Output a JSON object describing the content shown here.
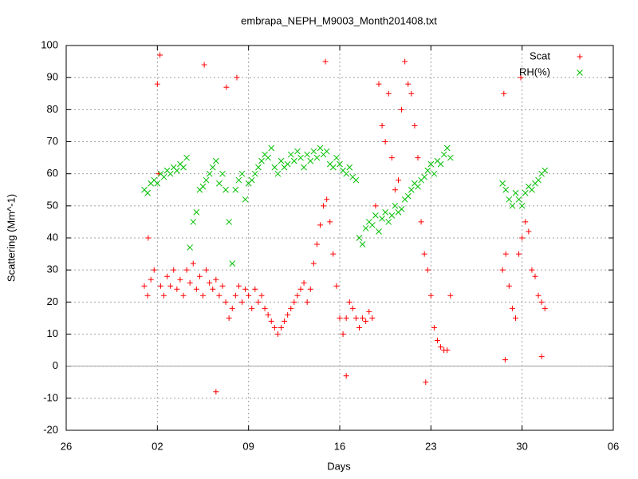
{
  "chart_data": {
    "type": "scatter",
    "title": "embrapa_NEPH_M9003_Month201408.txt",
    "xlabel": "Days",
    "ylabel": "Scattering (Mm^-1)",
    "xlim": [
      -5,
      37
    ],
    "xticks": [
      {
        "value": -5,
        "label": "26"
      },
      {
        "value": 2,
        "label": "02"
      },
      {
        "value": 9,
        "label": "09"
      },
      16,
      23,
      30,
      {
        "value": 37,
        "label": "06"
      }
    ],
    "ylim": [
      -20,
      100
    ],
    "yticks": [
      -20,
      -10,
      0,
      10,
      20,
      30,
      40,
      50,
      60,
      70,
      80,
      90,
      100
    ],
    "grid": true,
    "legend": "top-right",
    "series": [
      {
        "name": "Scat",
        "color": "#ff0000",
        "marker": "+",
        "x": [
          1.0,
          1.25,
          1.5,
          1.75,
          2.0,
          2.1,
          2.25,
          2.5,
          2.75,
          3.0,
          3.25,
          3.5,
          3.75,
          4.0,
          4.25,
          4.5,
          4.75,
          5.0,
          5.25,
          5.5,
          5.75,
          6.0,
          6.25,
          6.5,
          6.75,
          7.0,
          7.25,
          7.5,
          7.75,
          8.0,
          8.25,
          8.5,
          8.75,
          9.0,
          9.25,
          9.5,
          9.75,
          10.0,
          10.25,
          10.5,
          10.75,
          11.0,
          11.25,
          11.5,
          11.75,
          12.0,
          12.25,
          12.5,
          12.75,
          13.0,
          13.25,
          13.5,
          13.75,
          14.0,
          14.25,
          14.5,
          14.75,
          15.0,
          15.25,
          15.5,
          15.75,
          16.0,
          16.25,
          16.5,
          16.75,
          17.0,
          17.25,
          17.5,
          17.75,
          18.0,
          18.25,
          18.5,
          18.75,
          19.0,
          19.25,
          19.5,
          19.75,
          20.0,
          20.25,
          20.5,
          20.75,
          21.0,
          21.25,
          21.5,
          21.75,
          22.0,
          22.25,
          22.5,
          22.75,
          23.0,
          23.25,
          23.5,
          23.75,
          24.0,
          24.25,
          24.5,
          2.2,
          5.6,
          7.3,
          8.1,
          6.5,
          1.3,
          14.9,
          16.5,
          22.6,
          28.5,
          28.75,
          29.0,
          29.25,
          29.5,
          29.75,
          30.0,
          30.25,
          30.5,
          30.75,
          31.0,
          31.25,
          31.5,
          31.75,
          28.6,
          29.9,
          28.7,
          31.5
        ],
        "values": [
          25,
          22,
          27,
          30,
          88,
          60,
          25,
          22,
          28,
          25,
          30,
          24,
          27,
          22,
          30,
          26,
          32,
          24,
          28,
          22,
          30,
          26,
          24,
          27,
          22,
          25,
          20,
          15,
          18,
          22,
          25,
          20,
          24,
          22,
          18,
          24,
          20,
          22,
          18,
          16,
          14,
          12,
          10,
          12,
          14,
          16,
          18,
          20,
          22,
          24,
          26,
          20,
          24,
          32,
          38,
          44,
          50,
          52,
          45,
          35,
          25,
          15,
          10,
          15,
          20,
          18,
          15,
          12,
          15,
          14,
          17,
          15,
          50,
          88,
          75,
          70,
          85,
          65,
          55,
          58,
          80,
          95,
          88,
          85,
          75,
          65,
          45,
          35,
          30,
          22,
          12,
          8,
          6,
          5,
          5,
          22,
          97,
          94,
          87,
          90,
          -8,
          40,
          95,
          -3,
          -5,
          30,
          35,
          25,
          18,
          15,
          35,
          40,
          45,
          42,
          30,
          28,
          22,
          20,
          18,
          85,
          90,
          2,
          3
        ]
      },
      {
        "name": "RH(%)",
        "color": "#00c000",
        "marker": "x",
        "x": [
          1.0,
          1.25,
          1.5,
          1.75,
          2.0,
          2.25,
          2.5,
          2.75,
          3.0,
          3.25,
          3.5,
          3.75,
          4.0,
          4.25,
          4.5,
          4.75,
          5.0,
          5.25,
          5.5,
          5.75,
          6.0,
          6.25,
          6.5,
          6.75,
          7.0,
          7.25,
          7.5,
          7.75,
          8.0,
          8.25,
          8.5,
          8.75,
          9.0,
          9.25,
          9.5,
          9.75,
          10.0,
          10.25,
          10.5,
          10.75,
          11.0,
          11.25,
          11.5,
          11.75,
          12.0,
          12.25,
          12.5,
          12.75,
          13.0,
          13.25,
          13.5,
          13.75,
          14.0,
          14.25,
          14.5,
          14.75,
          15.0,
          15.25,
          15.5,
          15.75,
          16.0,
          16.25,
          16.5,
          16.75,
          17.0,
          17.25,
          17.5,
          17.75,
          18.0,
          18.25,
          18.5,
          18.75,
          19.0,
          19.25,
          19.5,
          19.75,
          20.0,
          20.25,
          20.5,
          20.75,
          21.0,
          21.25,
          21.5,
          21.75,
          22.0,
          22.25,
          22.5,
          22.75,
          23.0,
          23.25,
          23.5,
          23.75,
          24.0,
          24.25,
          24.5,
          28.5,
          28.75,
          29.0,
          29.25,
          29.5,
          29.75,
          30.0,
          30.25,
          30.5,
          30.75,
          31.0,
          31.25,
          31.5,
          31.75
        ],
        "values": [
          55,
          54,
          57,
          58,
          57,
          60,
          59,
          61,
          60,
          62,
          61,
          63,
          62,
          65,
          37,
          45,
          48,
          55,
          56,
          58,
          60,
          62,
          64,
          57,
          60,
          55,
          45,
          32,
          55,
          58,
          60,
          52,
          57,
          58,
          60,
          62,
          64,
          66,
          65,
          68,
          62,
          60,
          64,
          62,
          63,
          66,
          64,
          67,
          65,
          62,
          66,
          64,
          67,
          65,
          68,
          66,
          67,
          63,
          62,
          65,
          63,
          61,
          60,
          62,
          59,
          58,
          40,
          38,
          43,
          45,
          44,
          47,
          42,
          46,
          48,
          45,
          47,
          50,
          48,
          49,
          52,
          53,
          55,
          57,
          56,
          58,
          59,
          61,
          63,
          60,
          64,
          63,
          66,
          68,
          65,
          57,
          55,
          52,
          50,
          54,
          52,
          50,
          54,
          56,
          55,
          57,
          58,
          60,
          61
        ]
      }
    ]
  }
}
